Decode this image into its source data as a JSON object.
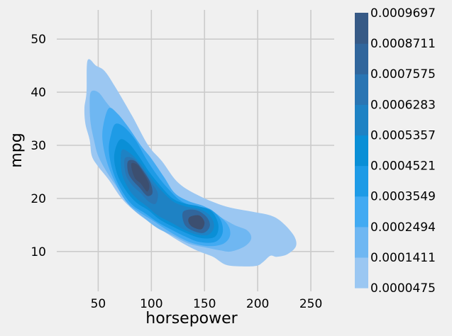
{
  "chart_data": {
    "type": "kde_contour",
    "xlabel": "horsepower",
    "ylabel": "mpg",
    "xlim": [
      11,
      272
    ],
    "ylim": [
      2.5,
      55.5
    ],
    "x_ticks": [
      50,
      100,
      150,
      200,
      250
    ],
    "y_ticks": [
      10,
      20,
      30,
      40,
      50
    ],
    "grid": true,
    "colorbar": {
      "placement": "right",
      "levels": [
        "0.0000475",
        "0.0001411",
        "0.0002494",
        "0.0003549",
        "0.0004521",
        "0.0005357",
        "0.0006283",
        "0.0007575",
        "0.0008711",
        "0.0009697"
      ],
      "colors": [
        "#9bc7f2",
        "#6fb7f2",
        "#42aaf2",
        "#1e9be6",
        "#0a8fd6",
        "#1e82c4",
        "#2a75b3",
        "#31669c",
        "#375a86",
        "#3c4f70"
      ]
    },
    "contours": [
      [
        [
          40,
          46
        ],
        [
          48,
          45
        ],
        [
          56,
          44
        ],
        [
          66,
          41
        ],
        [
          82,
          35.5
        ],
        [
          97,
          30
        ],
        [
          110,
          27
        ],
        [
          125,
          23
        ],
        [
          145,
          20.5
        ],
        [
          170,
          18.5
        ],
        [
          195,
          17.5
        ],
        [
          212,
          16.8
        ],
        [
          223,
          15.5
        ],
        [
          234,
          13
        ],
        [
          236,
          11
        ],
        [
          228,
          9.5
        ],
        [
          218,
          9
        ],
        [
          212,
          9.2
        ],
        [
          205,
          8
        ],
        [
          199,
          7.3
        ],
        [
          185,
          7.2
        ],
        [
          170,
          7.5
        ],
        [
          158,
          9
        ],
        [
          145,
          10
        ],
        [
          130,
          11.5
        ],
        [
          110,
          14
        ],
        [
          95,
          16
        ],
        [
          85,
          17.5
        ],
        [
          72,
          20
        ],
        [
          60,
          23.5
        ],
        [
          50,
          26
        ],
        [
          44,
          28
        ],
        [
          42,
          31
        ],
        [
          38,
          34
        ],
        [
          37,
          37
        ],
        [
          39,
          40
        ]
      ],
      [
        [
          43,
          40
        ],
        [
          50,
          40
        ],
        [
          58,
          38
        ],
        [
          68,
          35.5
        ],
        [
          80,
          32
        ],
        [
          90,
          29
        ],
        [
          100,
          26
        ],
        [
          112,
          23
        ],
        [
          125,
          20
        ],
        [
          142,
          18.5
        ],
        [
          160,
          17
        ],
        [
          178,
          15
        ],
        [
          190,
          14
        ],
        [
          194,
          12.5
        ],
        [
          188,
          11
        ],
        [
          175,
          10
        ],
        [
          165,
          10.2
        ],
        [
          150,
          10.8
        ],
        [
          135,
          11.5
        ],
        [
          120,
          13
        ],
        [
          105,
          14.5
        ],
        [
          92,
          16.5
        ],
        [
          80,
          18.5
        ],
        [
          68,
          22
        ],
        [
          58,
          25
        ],
        [
          50,
          28
        ],
        [
          46,
          31
        ],
        [
          43,
          34
        ],
        [
          42,
          37
        ]
      ],
      [
        [
          60,
          37
        ],
        [
          68,
          36
        ],
        [
          78,
          33.5
        ],
        [
          90,
          30
        ],
        [
          100,
          27.5
        ],
        [
          112,
          24
        ],
        [
          122,
          21
        ],
        [
          135,
          19.5
        ],
        [
          150,
          18.5
        ],
        [
          162,
          17
        ],
        [
          172,
          15
        ],
        [
          174,
          13
        ],
        [
          168,
          11.5
        ],
        [
          155,
          11
        ],
        [
          140,
          11.5
        ],
        [
          128,
          12.5
        ],
        [
          115,
          14
        ],
        [
          100,
          16
        ],
        [
          88,
          17.5
        ],
        [
          76,
          19.5
        ],
        [
          66,
          23
        ],
        [
          58,
          27
        ],
        [
          54,
          31
        ],
        [
          55,
          34
        ]
      ],
      [
        [
          66,
          34
        ],
        [
          74,
          33.5
        ],
        [
          85,
          31
        ],
        [
          95,
          27.5
        ],
        [
          105,
          24.5
        ],
        [
          115,
          22
        ],
        [
          128,
          19.5
        ],
        [
          142,
          18.5
        ],
        [
          155,
          18
        ],
        [
          165,
          16
        ],
        [
          167,
          13.5
        ],
        [
          160,
          11.8
        ],
        [
          145,
          11.8
        ],
        [
          132,
          12.8
        ],
        [
          120,
          14
        ],
        [
          106,
          15.5
        ],
        [
          94,
          17.2
        ],
        [
          82,
          18.8
        ],
        [
          72,
          21.5
        ],
        [
          64,
          25
        ],
        [
          60,
          29
        ],
        [
          62,
          32
        ]
      ],
      [
        [
          70,
          31
        ],
        [
          78,
          30.5
        ],
        [
          88,
          28
        ],
        [
          98,
          25
        ],
        [
          108,
          22.5
        ],
        [
          120,
          20
        ],
        [
          132,
          19
        ],
        [
          145,
          18.5
        ],
        [
          157,
          17.5
        ],
        [
          163,
          15
        ],
        [
          160,
          12.8
        ],
        [
          148,
          12.5
        ],
        [
          135,
          13.3
        ],
        [
          122,
          14.5
        ],
        [
          108,
          16
        ],
        [
          97,
          17.8
        ],
        [
          86,
          19.2
        ],
        [
          76,
          21.5
        ],
        [
          68,
          24.5
        ],
        [
          65,
          28
        ]
      ],
      [
        [
          72,
          29
        ],
        [
          80,
          28.5
        ],
        [
          90,
          26.5
        ],
        [
          99,
          24
        ],
        [
          108,
          21.8
        ],
        [
          120,
          19.5
        ],
        [
          132,
          18.5
        ],
        [
          145,
          18
        ],
        [
          155,
          16.8
        ],
        [
          159,
          14.8
        ],
        [
          154,
          13.2
        ],
        [
          143,
          13.2
        ],
        [
          132,
          14
        ],
        [
          120,
          15.3
        ],
        [
          106,
          16.8
        ],
        [
          96,
          18.5
        ],
        [
          86,
          20
        ],
        [
          78,
          22
        ],
        [
          72,
          25
        ]
      ],
      [
        [
          75,
          27.5
        ],
        [
          83,
          27.5
        ],
        [
          92,
          25.5
        ],
        [
          100,
          23
        ],
        [
          106,
          21
        ],
        [
          104,
          19
        ],
        [
          97,
          19.5
        ],
        [
          90,
          21
        ],
        [
          82,
          22.5
        ],
        [
          76,
          24.5
        ]
      ],
      [
        [
          130,
          17.5
        ],
        [
          142,
          17.8
        ],
        [
          152,
          16.5
        ],
        [
          155,
          14.8
        ],
        [
          149,
          13.5
        ],
        [
          138,
          14
        ],
        [
          131,
          15.2
        ]
      ],
      [
        [
          78,
          27
        ],
        [
          85,
          27
        ],
        [
          93,
          25
        ],
        [
          99,
          23
        ],
        [
          101,
          21
        ],
        [
          96,
          20.5
        ],
        [
          89,
          22
        ],
        [
          82,
          23.5
        ],
        [
          78,
          25
        ]
      ],
      [
        [
          136,
          16.5
        ],
        [
          145,
          16.8
        ],
        [
          150,
          15.5
        ],
        [
          147,
          14.2
        ],
        [
          139,
          14.6
        ],
        [
          135,
          15.5
        ]
      ],
      [
        [
          81,
          26.5
        ],
        [
          87,
          26.3
        ],
        [
          94,
          24.3
        ],
        [
          98,
          22.5
        ],
        [
          96,
          21.3
        ],
        [
          90,
          22.8
        ],
        [
          84,
          24
        ]
      ]
    ]
  }
}
